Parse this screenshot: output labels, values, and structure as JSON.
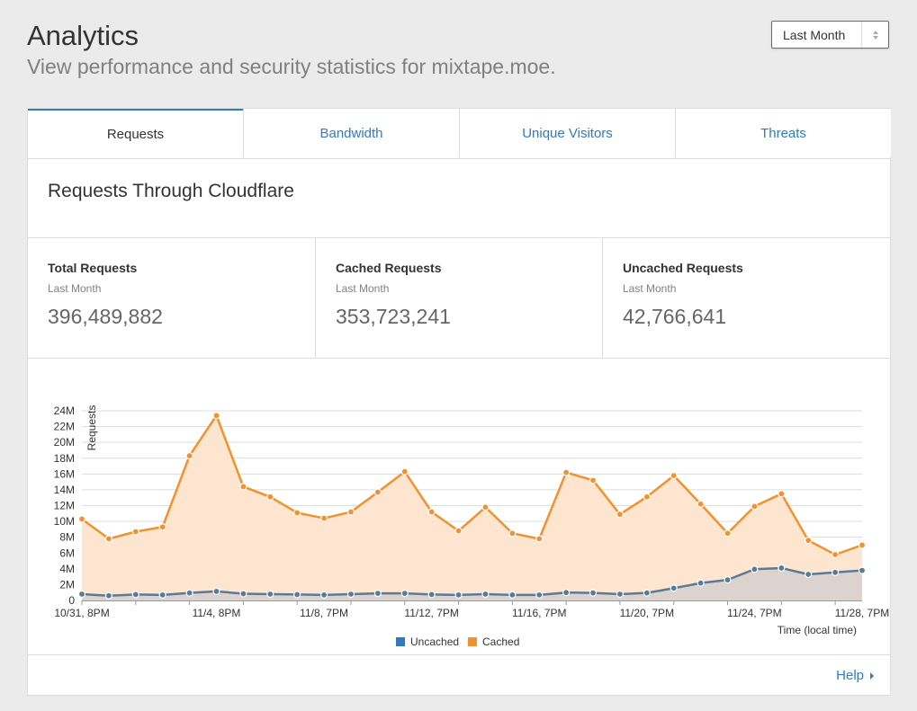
{
  "header": {
    "title": "Analytics",
    "subtitle": "View performance and security statistics for mixtape.moe."
  },
  "range_select": {
    "value": "Last Month"
  },
  "tabs": [
    {
      "label": "Requests",
      "active": true
    },
    {
      "label": "Bandwidth",
      "active": false
    },
    {
      "label": "Unique Visitors",
      "active": false
    },
    {
      "label": "Threats",
      "active": false
    }
  ],
  "section": {
    "title": "Requests Through Cloudflare"
  },
  "stats": [
    {
      "label": "Total Requests",
      "period": "Last Month",
      "value": "396,489,882"
    },
    {
      "label": "Cached Requests",
      "period": "Last Month",
      "value": "353,723,241"
    },
    {
      "label": "Uncached Requests",
      "period": "Last Month",
      "value": "42,766,641"
    }
  ],
  "help": {
    "label": "Help"
  },
  "colors": {
    "accent": "#2f7bbf",
    "cached": "#f0922f",
    "uncached": "#5b7a96",
    "cached_fill": "#fde5cf",
    "uncached_fill": "#dcd3cf",
    "legend_uncached": "#3179bd",
    "legend_cached": "#f0922f"
  },
  "chart_data": {
    "type": "area",
    "ylabel": "Requests",
    "xlabel": "Time (local time)",
    "ylim": [
      0,
      24000000
    ],
    "y_ticks": [
      "0",
      "2M",
      "4M",
      "6M",
      "8M",
      "10M",
      "12M",
      "14M",
      "16M",
      "18M",
      "20M",
      "22M",
      "24M"
    ],
    "x_tick_labels": [
      {
        "index": 0,
        "label": "10/31, 8PM"
      },
      {
        "index": 5,
        "label": "11/4, 8PM"
      },
      {
        "index": 9,
        "label": "11/8, 7PM"
      },
      {
        "index": 13,
        "label": "11/12, 7PM"
      },
      {
        "index": 17,
        "label": "11/16, 7PM"
      },
      {
        "index": 21,
        "label": "11/20, 7PM"
      },
      {
        "index": 25,
        "label": "11/24, 7PM"
      },
      {
        "index": 29,
        "label": "11/28, 7PM"
      }
    ],
    "grid": true,
    "legend_position": "bottom",
    "series": [
      {
        "name": "Uncached",
        "values": [
          800000,
          600000,
          750000,
          700000,
          950000,
          1150000,
          850000,
          800000,
          750000,
          700000,
          800000,
          900000,
          900000,
          750000,
          700000,
          800000,
          700000,
          700000,
          1000000,
          950000,
          800000,
          950000,
          1550000,
          2200000,
          2600000,
          3950000,
          4100000,
          3300000,
          3550000,
          3800000
        ]
      },
      {
        "name": "Cached",
        "values": [
          10300000,
          7800000,
          8700000,
          9300000,
          18300000,
          23400000,
          14400000,
          13100000,
          11100000,
          10400000,
          11200000,
          13700000,
          16300000,
          11200000,
          8800000,
          11800000,
          8500000,
          7800000,
          16200000,
          15200000,
          10900000,
          13100000,
          15800000,
          12200000,
          8500000,
          11900000,
          13500000,
          7600000,
          5800000,
          7000000
        ]
      }
    ]
  }
}
